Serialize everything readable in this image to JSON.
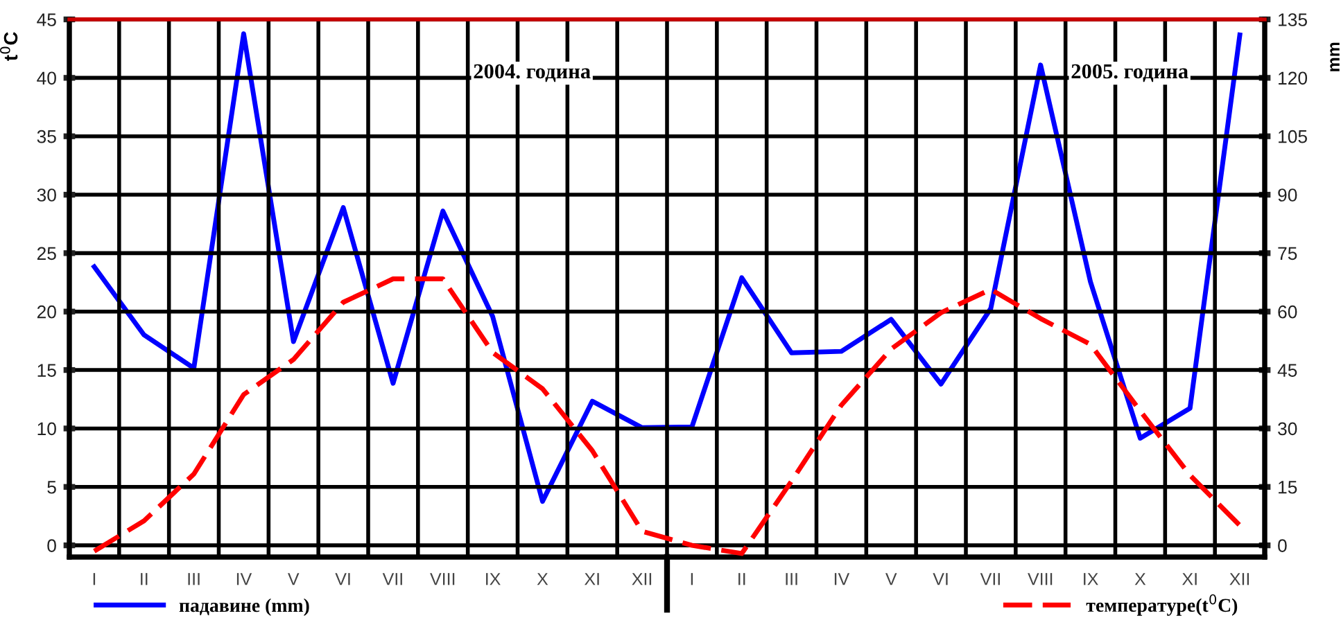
{
  "chart_data": {
    "type": "line",
    "categories": [
      "I",
      "II",
      "III",
      "IV",
      "V",
      "VI",
      "VII",
      "VIII",
      "IX",
      "X",
      "XI",
      "XII",
      "I",
      "II",
      "III",
      "IV",
      "V",
      "VI",
      "VII",
      "VIII",
      "IX",
      "X",
      "XI",
      "XII"
    ],
    "series": [
      {
        "name": "падавине (mm)",
        "color": "#0000ff",
        "axis": "y2",
        "line_style": "solid",
        "values": [
          71.5,
          54,
          45.5,
          131.3,
          52.3,
          86.7,
          41.6,
          85.8,
          58.7,
          11.3,
          37,
          30.2,
          30.4,
          68.7,
          49.4,
          49.8,
          58,
          41.4,
          60.8,
          123.3,
          67.7,
          27.5,
          35.2,
          131
        ]
      },
      {
        "name": "температуре(t$^{0}$C)",
        "color": "#ff0000",
        "axis": "y",
        "line_style": "dashed",
        "values": [
          -0.5,
          2.1,
          6.1,
          12.9,
          15.9,
          20.8,
          22.8,
          22.8,
          16.5,
          13.4,
          8.1,
          1.2,
          0,
          -0.7,
          5.5,
          12.0,
          16.8,
          19.9,
          21.9,
          19.4,
          17.2,
          11.5,
          6.0,
          1.7
        ]
      }
    ],
    "ylabel": "t$^{0}$C",
    "y2label": "mm",
    "ylim": [
      -1,
      45
    ],
    "yticks": [
      0,
      5,
      10,
      15,
      20,
      25,
      30,
      35,
      40,
      45
    ],
    "y2lim": [
      -3,
      135
    ],
    "y2ticks": [
      0,
      15,
      30,
      45,
      60,
      75,
      90,
      105,
      120,
      135
    ],
    "annotations": [
      "2004. година",
      "2005. година"
    ],
    "grid": true,
    "legend": "bottom"
  }
}
